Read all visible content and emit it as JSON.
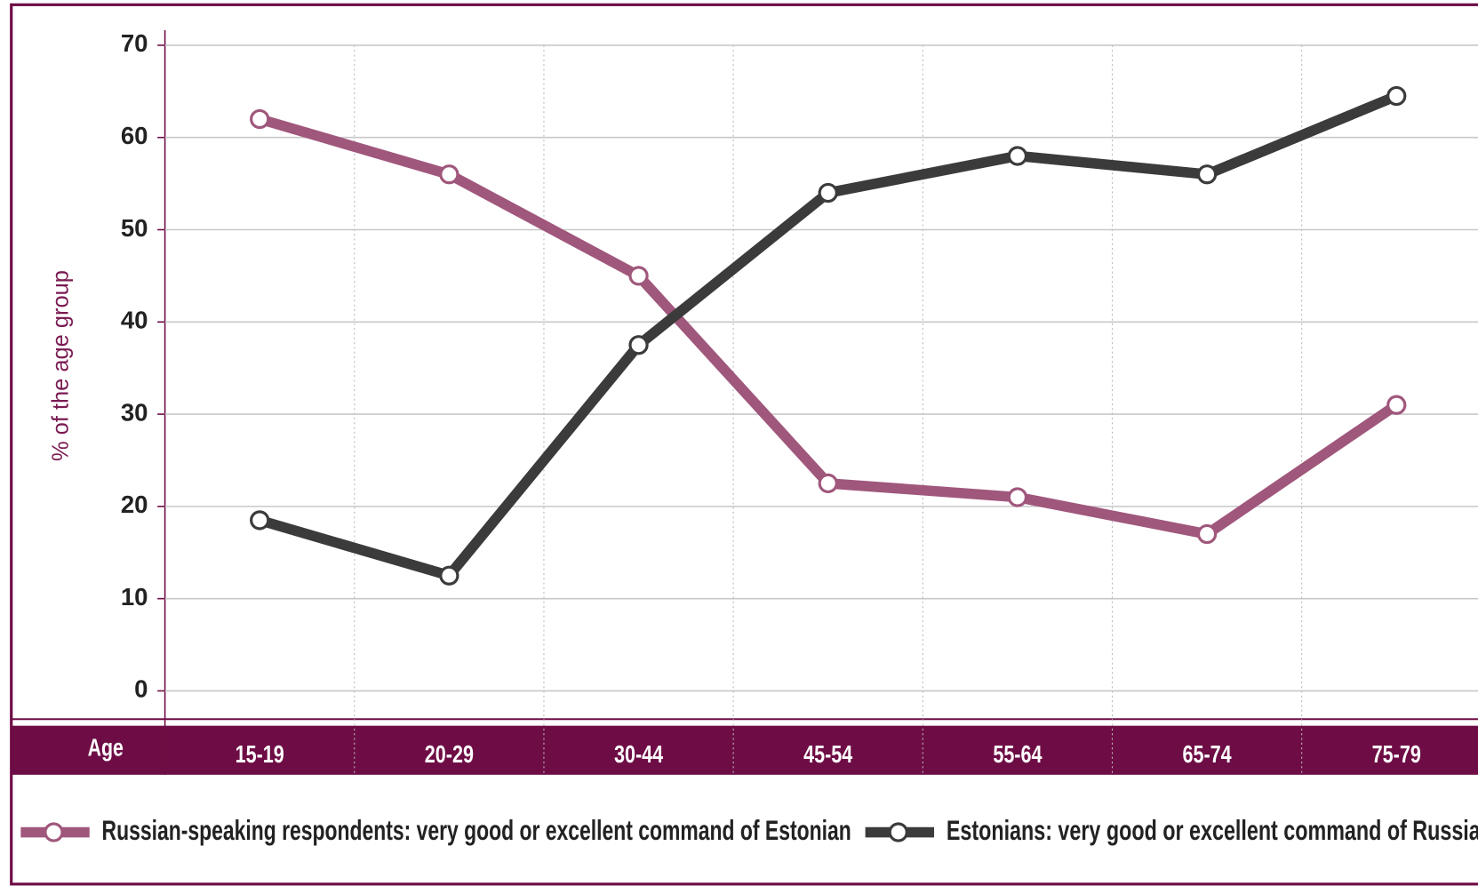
{
  "chart_data": {
    "type": "line",
    "x_label": "Age",
    "y_label": "% of the age group",
    "categories": [
      "15-19",
      "20-29",
      "30-44",
      "45-54",
      "55-64",
      "65-74",
      "75-79"
    ],
    "series": [
      {
        "name": "Russian-speaking respondents: very good or excellent command of Estonian",
        "color": "#a0577c",
        "values": [
          62,
          56,
          45,
          22.5,
          21,
          17,
          31
        ]
      },
      {
        "name": "Estonians: very good or excellent command of Russian",
        "color": "#3b3b3b",
        "values": [
          18.5,
          12.5,
          37.5,
          54,
          58,
          56,
          64.5
        ]
      }
    ],
    "ylim": [
      0,
      70
    ],
    "yticks": [
      0,
      10,
      20,
      30,
      40,
      50,
      60,
      70
    ],
    "grid": true
  }
}
